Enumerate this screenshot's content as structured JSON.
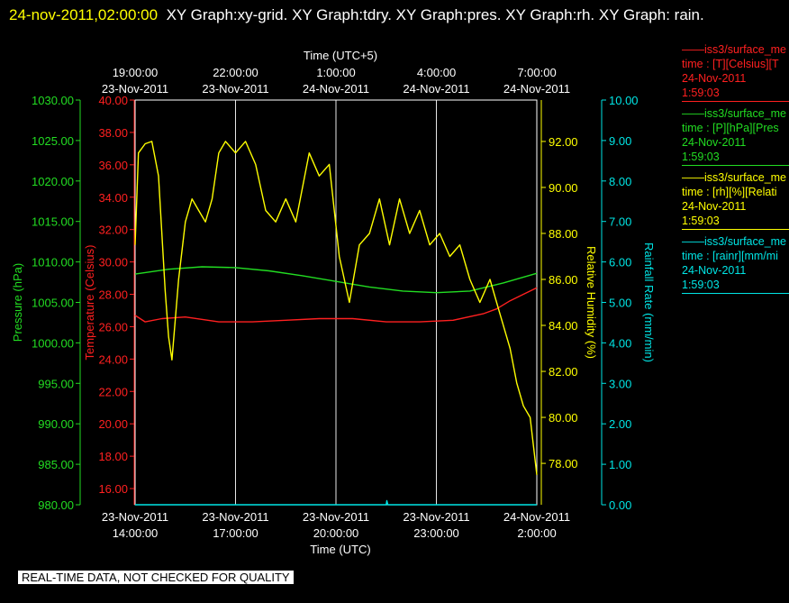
{
  "header": {
    "date": "24-nov-2011,02:00:00",
    "title": "XY Graph:xy-grid.  XY Graph:tdry.  XY Graph:pres.  XY Graph:rh.  XY Graph: rain."
  },
  "legend": [
    {
      "line": "——iss3/surface_me",
      "field": "time : [T][Celsius][T",
      "date": "24-Nov-2011",
      "time": "1:59:03",
      "color": "#ff2020"
    },
    {
      "line": "——iss3/surface_me",
      "field": "time : [P][hPa][Pres",
      "date": "24-Nov-2011",
      "time": "1:59:03",
      "color": "#22dd22"
    },
    {
      "line": "——iss3/surface_me",
      "field": "time : [rh][%][Relati",
      "date": "24-Nov-2011",
      "time": "1:59:03",
      "color": "#ffff00"
    },
    {
      "line": "——iss3/surface_me",
      "field": "time : [rainr][mm/mi",
      "date": "24-Nov-2011",
      "time": "1:59:03",
      "color": "#00e5e5"
    }
  ],
  "warning": "REAL-TIME DATA, NOT CHECKED FOR QUALITY",
  "chart_data": {
    "type": "line",
    "top_axis": {
      "label": "Time (UTC+5)",
      "ticks": [
        {
          "time": "19:00:00",
          "date": "23-Nov-2011"
        },
        {
          "time": "22:00:00",
          "date": "23-Nov-2011"
        },
        {
          "time": "1:00:00",
          "date": "24-Nov-2011"
        },
        {
          "time": "4:00:00",
          "date": "24-Nov-2011"
        },
        {
          "time": "7:00:00",
          "date": "24-Nov-2011"
        }
      ]
    },
    "bottom_axis": {
      "label": "Time (UTC)",
      "ticks": [
        {
          "date": "23-Nov-2011",
          "time": "14:00:00"
        },
        {
          "date": "23-Nov-2011",
          "time": "17:00:00"
        },
        {
          "date": "23-Nov-2011",
          "time": "20:00:00"
        },
        {
          "date": "23-Nov-2011",
          "time": "23:00:00"
        },
        {
          "date": "24-Nov-2011",
          "time": "2:00:00"
        }
      ]
    },
    "axes": {
      "pressure": {
        "label": "Pressure (hPa)",
        "color": "#22dd22",
        "range": [
          980,
          1030
        ],
        "ticks": [
          "1030.00",
          "1025.00",
          "1020.00",
          "1015.00",
          "1010.00",
          "1005.00",
          "1000.00",
          "995.00",
          "990.00",
          "985.00",
          "980.00"
        ]
      },
      "temperature": {
        "label": "Temperature (Celsius)",
        "color": "#ff2020",
        "range": [
          15,
          40
        ],
        "ticks": [
          "40.00",
          "38.00",
          "36.00",
          "34.00",
          "32.00",
          "30.00",
          "28.00",
          "26.00",
          "24.00",
          "22.00",
          "20.00",
          "18.00",
          "16.00"
        ]
      },
      "humidity": {
        "label": "Relative Humidity (%)",
        "color": "#ffff00",
        "range": [
          76.2,
          93.8
        ],
        "ticks": [
          "92.00",
          "90.00",
          "88.00",
          "86.00",
          "84.00",
          "82.00",
          "80.00",
          "78.00"
        ]
      },
      "rainfall": {
        "label": "Rainfall Rate (mm/min)",
        "color": "#00e5e5",
        "range": [
          0,
          10
        ],
        "ticks": [
          "10.00",
          "9.00",
          "8.00",
          "7.00",
          "6.00",
          "5.00",
          "4.00",
          "3.00",
          "2.00",
          "1.00",
          "0.00"
        ]
      }
    },
    "x_hours_utc": [
      0,
      1,
      2,
      3,
      4,
      5,
      6,
      7,
      8,
      9,
      10,
      11,
      12
    ],
    "series": [
      {
        "name": "Pressure",
        "color": "#22dd22",
        "x": [
          0,
          1,
          2,
          3,
          4,
          5,
          6,
          7,
          8,
          9,
          10,
          11,
          12
        ],
        "y": [
          1008.5,
          1009.1,
          1009.4,
          1009.3,
          1008.9,
          1008.3,
          1007.6,
          1006.9,
          1006.4,
          1006.2,
          1006.4,
          1007.4,
          1008.6
        ]
      },
      {
        "name": "Temperature",
        "color": "#ff2020",
        "x": [
          0,
          0.3,
          0.8,
          1.5,
          2.5,
          3.5,
          4.5,
          5.5,
          6.5,
          7.5,
          8.5,
          9.5,
          10.4,
          10.8,
          11.2,
          11.6,
          12.0
        ],
        "y": [
          26.7,
          26.3,
          26.5,
          26.6,
          26.3,
          26.3,
          26.4,
          26.5,
          26.5,
          26.3,
          26.3,
          26.4,
          26.8,
          27.1,
          27.6,
          28.0,
          28.4
        ]
      },
      {
        "name": "Relative Humidity",
        "color": "#ffff00",
        "x": [
          0,
          0.1,
          0.3,
          0.5,
          0.7,
          0.9,
          1.0,
          1.1,
          1.3,
          1.5,
          1.7,
          1.9,
          2.1,
          2.3,
          2.5,
          2.7,
          3.0,
          3.3,
          3.6,
          3.9,
          4.2,
          4.5,
          4.8,
          5.2,
          5.5,
          5.8,
          6.1,
          6.4,
          6.7,
          7.0,
          7.3,
          7.6,
          7.9,
          8.2,
          8.5,
          8.8,
          9.1,
          9.4,
          9.7,
          10.0,
          10.3,
          10.6,
          10.9,
          11.2,
          11.4,
          11.6,
          11.8,
          12.0
        ],
        "y": [
          87.5,
          91.5,
          91.9,
          92.0,
          90.5,
          85.5,
          83.5,
          82.5,
          86.0,
          88.5,
          89.5,
          89.0,
          88.5,
          89.5,
          91.5,
          92.0,
          91.5,
          92.0,
          91.0,
          89.0,
          88.5,
          89.5,
          88.5,
          91.5,
          90.5,
          91.0,
          87.0,
          85.0,
          87.5,
          88.0,
          89.5,
          87.5,
          89.5,
          88.0,
          89.0,
          87.5,
          88.0,
          87.0,
          87.5,
          86.0,
          85.0,
          86.0,
          84.5,
          83.0,
          81.5,
          80.5,
          80.0,
          77.5
        ]
      },
      {
        "name": "Rainfall Rate",
        "color": "#00e5e5",
        "x": [
          0,
          7.5,
          7.52,
          7.55,
          12.0
        ],
        "y": [
          0,
          0,
          0.1,
          0,
          0
        ]
      }
    ]
  }
}
